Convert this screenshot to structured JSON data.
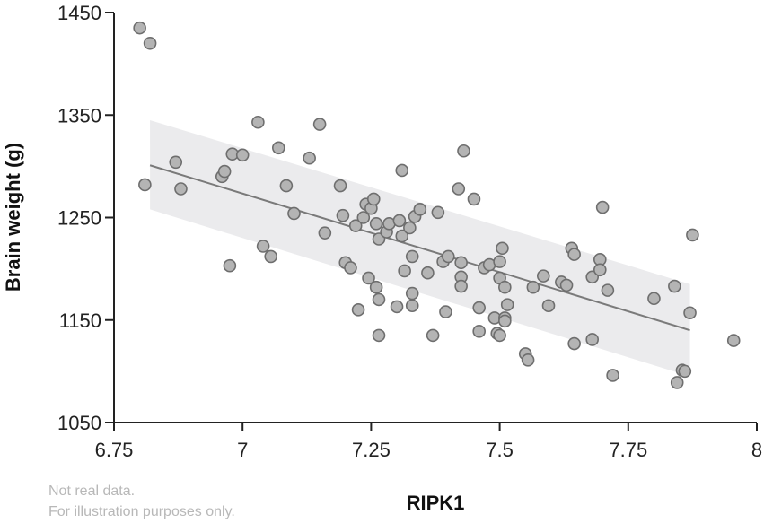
{
  "chart_data": {
    "type": "scatter",
    "xlabel": "RIPK1",
    "ylabel": "Brain weight (g)",
    "xlim": [
      6.75,
      8
    ],
    "ylim": [
      1050,
      1450
    ],
    "xticks": [
      "6.75",
      "7",
      "7.25",
      "7.5",
      "7.75",
      "8"
    ],
    "yticks": [
      "1450",
      "1350",
      "1250",
      "1150",
      "1050"
    ],
    "grid": false,
    "colors": {
      "point_fill": "#b4b4b4",
      "point_stroke": "#6e6e6e",
      "fit_line": "#7a7a7a",
      "ci_band": "#ebebed",
      "axis": "#222222"
    },
    "fit": {
      "x": [
        6.82,
        7.87
      ],
      "y": [
        1301,
        1140
      ]
    },
    "confidence_band": {
      "x": [
        6.82,
        7.87
      ],
      "upper": [
        1345,
        1185
      ],
      "lower": [
        1258,
        1095
      ]
    },
    "points": [
      {
        "x": 6.8,
        "y": 1435
      },
      {
        "x": 6.82,
        "y": 1420
      },
      {
        "x": 6.81,
        "y": 1282
      },
      {
        "x": 6.87,
        "y": 1304
      },
      {
        "x": 6.88,
        "y": 1278
      },
      {
        "x": 6.96,
        "y": 1290
      },
      {
        "x": 6.965,
        "y": 1295
      },
      {
        "x": 6.98,
        "y": 1312
      },
      {
        "x": 7.0,
        "y": 1311
      },
      {
        "x": 6.975,
        "y": 1203
      },
      {
        "x": 7.03,
        "y": 1343
      },
      {
        "x": 7.04,
        "y": 1222
      },
      {
        "x": 7.055,
        "y": 1212
      },
      {
        "x": 7.07,
        "y": 1318
      },
      {
        "x": 7.085,
        "y": 1281
      },
      {
        "x": 7.1,
        "y": 1254
      },
      {
        "x": 7.13,
        "y": 1308
      },
      {
        "x": 7.15,
        "y": 1341
      },
      {
        "x": 7.16,
        "y": 1235
      },
      {
        "x": 7.19,
        "y": 1281
      },
      {
        "x": 7.195,
        "y": 1252
      },
      {
        "x": 7.2,
        "y": 1206
      },
      {
        "x": 7.21,
        "y": 1201
      },
      {
        "x": 7.22,
        "y": 1242
      },
      {
        "x": 7.225,
        "y": 1160
      },
      {
        "x": 7.235,
        "y": 1250
      },
      {
        "x": 7.24,
        "y": 1263
      },
      {
        "x": 7.245,
        "y": 1191
      },
      {
        "x": 7.25,
        "y": 1259
      },
      {
        "x": 7.255,
        "y": 1268
      },
      {
        "x": 7.26,
        "y": 1244
      },
      {
        "x": 7.26,
        "y": 1182
      },
      {
        "x": 7.265,
        "y": 1229
      },
      {
        "x": 7.265,
        "y": 1170
      },
      {
        "x": 7.265,
        "y": 1135
      },
      {
        "x": 7.28,
        "y": 1236
      },
      {
        "x": 7.285,
        "y": 1244
      },
      {
        "x": 7.3,
        "y": 1163
      },
      {
        "x": 7.305,
        "y": 1247
      },
      {
        "x": 7.31,
        "y": 1232
      },
      {
        "x": 7.31,
        "y": 1296
      },
      {
        "x": 7.315,
        "y": 1198
      },
      {
        "x": 7.325,
        "y": 1240
      },
      {
        "x": 7.33,
        "y": 1212
      },
      {
        "x": 7.33,
        "y": 1176
      },
      {
        "x": 7.33,
        "y": 1164
      },
      {
        "x": 7.335,
        "y": 1251
      },
      {
        "x": 7.345,
        "y": 1258
      },
      {
        "x": 7.36,
        "y": 1196
      },
      {
        "x": 7.37,
        "y": 1135
      },
      {
        "x": 7.38,
        "y": 1255
      },
      {
        "x": 7.39,
        "y": 1207
      },
      {
        "x": 7.395,
        "y": 1158
      },
      {
        "x": 7.4,
        "y": 1212
      },
      {
        "x": 7.42,
        "y": 1278
      },
      {
        "x": 7.425,
        "y": 1206
      },
      {
        "x": 7.425,
        "y": 1192
      },
      {
        "x": 7.425,
        "y": 1183
      },
      {
        "x": 7.43,
        "y": 1315
      },
      {
        "x": 7.45,
        "y": 1268
      },
      {
        "x": 7.46,
        "y": 1162
      },
      {
        "x": 7.46,
        "y": 1139
      },
      {
        "x": 7.47,
        "y": 1201
      },
      {
        "x": 7.48,
        "y": 1204
      },
      {
        "x": 7.49,
        "y": 1152
      },
      {
        "x": 7.495,
        "y": 1137
      },
      {
        "x": 7.5,
        "y": 1207
      },
      {
        "x": 7.5,
        "y": 1191
      },
      {
        "x": 7.5,
        "y": 1135
      },
      {
        "x": 7.505,
        "y": 1220
      },
      {
        "x": 7.51,
        "y": 1182
      },
      {
        "x": 7.51,
        "y": 1152
      },
      {
        "x": 7.51,
        "y": 1149
      },
      {
        "x": 7.515,
        "y": 1165
      },
      {
        "x": 7.55,
        "y": 1117
      },
      {
        "x": 7.555,
        "y": 1111
      },
      {
        "x": 7.565,
        "y": 1182
      },
      {
        "x": 7.585,
        "y": 1193
      },
      {
        "x": 7.595,
        "y": 1164
      },
      {
        "x": 7.62,
        "y": 1187
      },
      {
        "x": 7.63,
        "y": 1184
      },
      {
        "x": 7.64,
        "y": 1220
      },
      {
        "x": 7.645,
        "y": 1214
      },
      {
        "x": 7.645,
        "y": 1127
      },
      {
        "x": 7.68,
        "y": 1131
      },
      {
        "x": 7.68,
        "y": 1192
      },
      {
        "x": 7.695,
        "y": 1209
      },
      {
        "x": 7.695,
        "y": 1199
      },
      {
        "x": 7.7,
        "y": 1260
      },
      {
        "x": 7.71,
        "y": 1179
      },
      {
        "x": 7.72,
        "y": 1096
      },
      {
        "x": 7.8,
        "y": 1171
      },
      {
        "x": 7.84,
        "y": 1183
      },
      {
        "x": 7.845,
        "y": 1089
      },
      {
        "x": 7.855,
        "y": 1101
      },
      {
        "x": 7.86,
        "y": 1100
      },
      {
        "x": 7.87,
        "y": 1157
      },
      {
        "x": 7.875,
        "y": 1233
      },
      {
        "x": 7.955,
        "y": 1130
      }
    ]
  },
  "note": {
    "line1": "Not real data.",
    "line2": "For illustration purposes only."
  }
}
